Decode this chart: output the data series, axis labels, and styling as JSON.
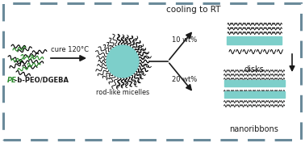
{
  "bg_color": "#ffffff",
  "border_color": "#6a8a9a",
  "teal_color": "#7dcfca",
  "dark_color": "#1a1a1a",
  "green_color": "#2a8a2a",
  "title_text": "cooling to RT",
  "label_PE": "PE",
  "label_rest": "-b-PEO/DGEBA",
  "label_cure": "cure 120°C",
  "label_micelles": "rod-like micelles",
  "label_10wt": "10 wt%",
  "label_20wt": "20 wt%",
  "label_disks": "disks",
  "label_nanoribbons": "nanoribbons",
  "figw": 3.78,
  "figh": 1.77,
  "dpi": 100
}
